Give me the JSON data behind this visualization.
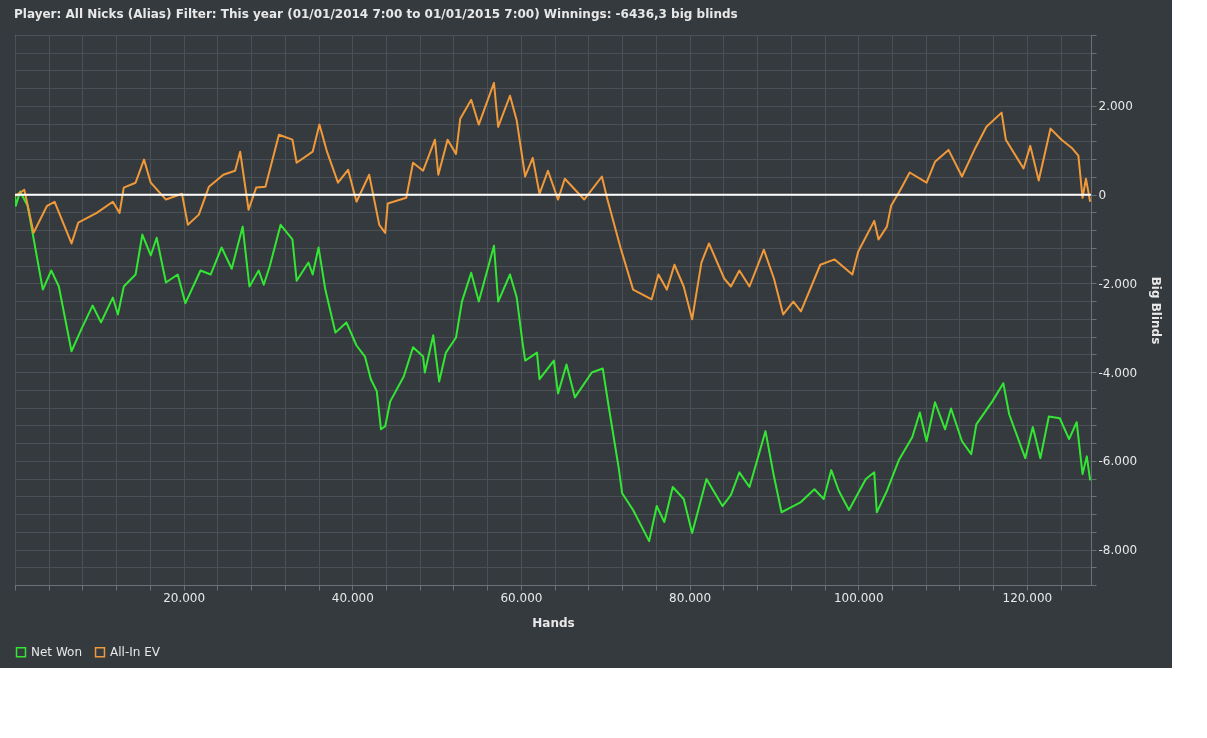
{
  "chart_data": {
    "type": "line",
    "title": "Player: All Nicks (Alias)  Filter: This year (01/01/2014 7:00 to 01/01/2015 7:00)  Winnings: -6436,3 big blinds",
    "xlabel": "Hands",
    "ylabel": "Big Blinds",
    "xlim": [
      0,
      127600
    ],
    "ylim": [
      -8800,
      3600
    ],
    "xticks": [
      {
        "value": 0,
        "label": null
      },
      {
        "value": 4000,
        "label": null
      },
      {
        "value": 8000,
        "label": null
      },
      {
        "value": 12000,
        "label": null
      },
      {
        "value": 16000,
        "label": null
      },
      {
        "value": 20000,
        "label": "20.000"
      },
      {
        "value": 24000,
        "label": null
      },
      {
        "value": 28000,
        "label": null
      },
      {
        "value": 32000,
        "label": null
      },
      {
        "value": 36000,
        "label": null
      },
      {
        "value": 40000,
        "label": "40.000"
      },
      {
        "value": 44000,
        "label": null
      },
      {
        "value": 48000,
        "label": null
      },
      {
        "value": 52000,
        "label": null
      },
      {
        "value": 56000,
        "label": null
      },
      {
        "value": 60000,
        "label": "60.000"
      },
      {
        "value": 64000,
        "label": null
      },
      {
        "value": 68000,
        "label": null
      },
      {
        "value": 72000,
        "label": null
      },
      {
        "value": 76000,
        "label": null
      },
      {
        "value": 80000,
        "label": "80.000"
      },
      {
        "value": 84000,
        "label": null
      },
      {
        "value": 88000,
        "label": null
      },
      {
        "value": 92000,
        "label": null
      },
      {
        "value": 96000,
        "label": null
      },
      {
        "value": 100000,
        "label": "100.000"
      },
      {
        "value": 104000,
        "label": null
      },
      {
        "value": 108000,
        "label": null
      },
      {
        "value": 112000,
        "label": null
      },
      {
        "value": 116000,
        "label": null
      },
      {
        "value": 120000,
        "label": "120.000"
      },
      {
        "value": 124000,
        "label": null
      }
    ],
    "yticks": [
      {
        "value": -8800,
        "label": null
      },
      {
        "value": -8400,
        "label": null
      },
      {
        "value": -8000,
        "label": "-8.000"
      },
      {
        "value": -7600,
        "label": null
      },
      {
        "value": -7200,
        "label": null
      },
      {
        "value": -6800,
        "label": null
      },
      {
        "value": -6400,
        "label": null
      },
      {
        "value": -6000,
        "label": "-6.000"
      },
      {
        "value": -5600,
        "label": null
      },
      {
        "value": -5200,
        "label": null
      },
      {
        "value": -4800,
        "label": null
      },
      {
        "value": -4400,
        "label": null
      },
      {
        "value": -4000,
        "label": "-4.000"
      },
      {
        "value": -3600,
        "label": null
      },
      {
        "value": -3200,
        "label": null
      },
      {
        "value": -2800,
        "label": null
      },
      {
        "value": -2400,
        "label": null
      },
      {
        "value": -2000,
        "label": "-2.000"
      },
      {
        "value": -1600,
        "label": null
      },
      {
        "value": -1200,
        "label": null
      },
      {
        "value": -800,
        "label": null
      },
      {
        "value": -400,
        "label": null
      },
      0,
      {
        "value": 400,
        "label": null
      },
      {
        "value": 800,
        "label": null
      },
      {
        "value": 1200,
        "label": null
      },
      {
        "value": 1600,
        "label": null
      },
      {
        "value": 2000,
        "label": "2.000"
      },
      {
        "value": 2400,
        "label": null
      },
      {
        "value": 2800,
        "label": null
      },
      {
        "value": 3200,
        "label": null
      },
      {
        "value": 3600,
        "label": null
      }
    ],
    "grid": true,
    "legend": "bottom",
    "marker": "none",
    "line_style": "solid",
    "ref_lines": [
      {
        "axis": "y",
        "value": 0,
        "color": "#ffffff"
      }
    ],
    "series": [
      {
        "name": "Net Won",
        "color": "#33e633",
        "x": [
          0,
          100,
          600,
          1500,
          3300,
          4300,
          5200,
          6700,
          7900,
          9200,
          10200,
          11600,
          12200,
          12900,
          14300,
          15100,
          16100,
          16800,
          17900,
          19300,
          20200,
          22000,
          23200,
          24500,
          25700,
          27000,
          27800,
          28900,
          29500,
          30200,
          31500,
          32900,
          33400,
          34800,
          35300,
          36000,
          36800,
          38000,
          39300,
          40500,
          41500,
          42200,
          42900,
          43400,
          43900,
          44500,
          46100,
          47200,
          48400,
          48600,
          49600,
          50300,
          51100,
          52300,
          53000,
          54100,
          55000,
          56800,
          57300,
          58700,
          59500,
          60200,
          60500,
          61900,
          62200,
          63900,
          64400,
          65400,
          66400,
          68400,
          69700,
          70400,
          71600,
          72000,
          73300,
          75200,
          76100,
          77000,
          78000,
          79300,
          80300,
          82000,
          83900,
          84900,
          85900,
          87100,
          89000,
          90000,
          90900,
          93200,
          94800,
          95900,
          96800,
          97700,
          98900,
          100900,
          101900,
          102200,
          103400,
          104800,
          106400,
          107300,
          108100,
          109100,
          110300,
          111000,
          112300,
          113400,
          114000,
          115900,
          117200,
          117900,
          119800,
          120700,
          121600,
          122600,
          123900,
          125000,
          125900,
          126600,
          127100,
          127500
        ],
        "values": [
          0,
          -250,
          70,
          -250,
          -2140,
          -1710,
          -2070,
          -3530,
          -3020,
          -2500,
          -2880,
          -2320,
          -2700,
          -2070,
          -1800,
          -900,
          -1370,
          -970,
          -1980,
          -1800,
          -2450,
          -1710,
          -1800,
          -1190,
          -1670,
          -720,
          -2070,
          -1710,
          -2030,
          -1620,
          -680,
          -1010,
          -1940,
          -1530,
          -1800,
          -1190,
          -2140,
          -3110,
          -2880,
          -3400,
          -3650,
          -4160,
          -4430,
          -5290,
          -5220,
          -4660,
          -4100,
          -3440,
          -3650,
          -4010,
          -3170,
          -4210,
          -3560,
          -3220,
          -2410,
          -1760,
          -2410,
          -1150,
          -2410,
          -1800,
          -2320,
          -3350,
          -3740,
          -3560,
          -4160,
          -3740,
          -4480,
          -3830,
          -4570,
          -4010,
          -3920,
          -4770,
          -6170,
          -6730,
          -7110,
          -7810,
          -7020,
          -7380,
          -6590,
          -6860,
          -7630,
          -6410,
          -7020,
          -6770,
          -6260,
          -6590,
          -5330,
          -6350,
          -7160,
          -6930,
          -6640,
          -6860,
          -6210,
          -6680,
          -7110,
          -6410,
          -6260,
          -7160,
          -6680,
          -5990,
          -5470,
          -4910,
          -5560,
          -4680,
          -5290,
          -4820,
          -5560,
          -5850,
          -5180,
          -4660,
          -4250,
          -4950,
          -5940,
          -5240,
          -5940,
          -5000,
          -5040,
          -5510,
          -5130,
          -6300,
          -5900,
          -6440
        ]
      },
      {
        "name": "All-In EV",
        "color": "#f0993a",
        "x": [
          0,
          100,
          1100,
          2200,
          3800,
          4700,
          6700,
          7500,
          9700,
          11600,
          12400,
          12900,
          14300,
          15300,
          16100,
          17900,
          19800,
          20500,
          21800,
          23000,
          24700,
          26100,
          26700,
          27700,
          28600,
          29700,
          31300,
          32900,
          33400,
          35300,
          36100,
          37000,
          38300,
          39500,
          40500,
          42000,
          43200,
          43900,
          44200,
          46400,
          47200,
          48400,
          49800,
          50200,
          51300,
          52300,
          52800,
          54100,
          55000,
          56800,
          57300,
          58700,
          59500,
          60500,
          61400,
          62200,
          63200,
          64400,
          65200,
          67500,
          69600,
          70200,
          71800,
          73300,
          75500,
          76300,
          77300,
          78200,
          79300,
          80300,
          81400,
          82300,
          84100,
          84900,
          85900,
          87100,
          88800,
          90000,
          91100,
          92300,
          93200,
          95500,
          97200,
          99300,
          100000,
          101900,
          102400,
          103400,
          103900,
          105000,
          106100,
          108100,
          109100,
          110700,
          112300,
          113900,
          115200,
          117000,
          117500,
          119600,
          120400,
          121400,
          122800,
          124100,
          125300,
          126100,
          126600,
          127000,
          127500
        ],
        "values": [
          0,
          -20,
          110,
          -860,
          -250,
          -160,
          -1100,
          -630,
          -410,
          -160,
          -410,
          160,
          270,
          790,
          270,
          -110,
          20,
          -680,
          -450,
          180,
          450,
          540,
          970,
          -340,
          160,
          180,
          1350,
          1240,
          720,
          970,
          1580,
          970,
          270,
          560,
          -160,
          450,
          -680,
          -860,
          -200,
          -70,
          720,
          540,
          1240,
          450,
          1240,
          920,
          1710,
          2140,
          1580,
          2520,
          1530,
          2230,
          1670,
          410,
          830,
          20,
          540,
          -110,
          360,
          -110,
          410,
          -70,
          -1190,
          -2140,
          -2360,
          -1800,
          -2140,
          -1580,
          -2070,
          -2810,
          -1530,
          -1100,
          -1890,
          -2070,
          -1710,
          -2070,
          -1240,
          -1890,
          -2700,
          -2410,
          -2630,
          -1580,
          -1460,
          -1800,
          -1280,
          -590,
          -1010,
          -720,
          -250,
          110,
          500,
          270,
          740,
          1010,
          410,
          1060,
          1530,
          1850,
          1240,
          590,
          1100,
          320,
          1490,
          1240,
          1060,
          880,
          -70,
          360,
          -160
        ]
      }
    ]
  }
}
